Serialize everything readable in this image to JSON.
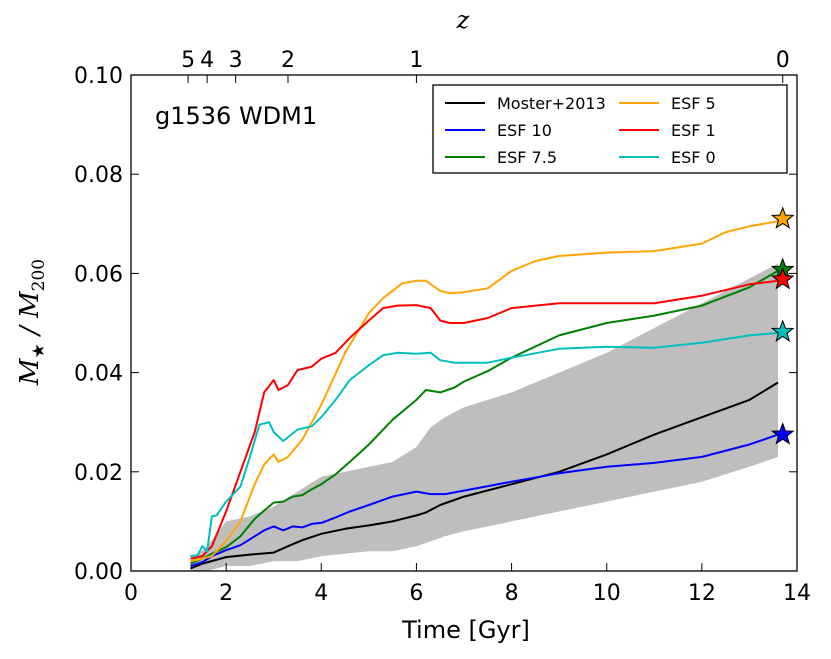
{
  "chart_data": {
    "type": "line",
    "panel_label": "g1536 WDM1",
    "xlabel": "Time [Gyr]",
    "ylabel": {
      "main": "M",
      "main_sub": "★",
      "sep": " / ",
      "den": "M",
      "den_sub": "200"
    },
    "top_axis_label": "z",
    "xlim": [
      0,
      14
    ],
    "ylim": [
      0.0,
      0.1
    ],
    "x_ticks": [
      0,
      2,
      4,
      6,
      8,
      10,
      12,
      14
    ],
    "x_tick_labels": [
      "0",
      "2",
      "4",
      "6",
      "8",
      "10",
      "12",
      "14"
    ],
    "y_ticks": [
      0.0,
      0.02,
      0.04,
      0.06,
      0.08,
      0.1
    ],
    "y_tick_labels": [
      "0.00",
      "0.02",
      "0.04",
      "0.06",
      "0.08",
      "0.10"
    ],
    "top_ticks": [
      {
        "label": "5",
        "time": 1.2
      },
      {
        "label": "4",
        "time": 1.6
      },
      {
        "label": "3",
        "time": 2.2
      },
      {
        "label": "2",
        "time": 3.3
      },
      {
        "label": "1",
        "time": 6.0
      },
      {
        "label": "0",
        "time": 13.7
      }
    ],
    "shaded_band": {
      "color": "#bebebe",
      "x": [
        1.25,
        1.6,
        2.0,
        2.5,
        3.0,
        3.5,
        4.0,
        5.0,
        5.5,
        6.0,
        6.3,
        6.6,
        7.0,
        8.0,
        9.0,
        10.0,
        11.0,
        12.0,
        13.0,
        13.6
      ],
      "upper": [
        0.002,
        0.005,
        0.01,
        0.011,
        0.013,
        0.016,
        0.019,
        0.021,
        0.022,
        0.025,
        0.029,
        0.031,
        0.033,
        0.036,
        0.04,
        0.044,
        0.049,
        0.054,
        0.059,
        0.062
      ],
      "lower": [
        0.0,
        0.0,
        0.001,
        0.001,
        0.002,
        0.002,
        0.003,
        0.004,
        0.004,
        0.005,
        0.006,
        0.007,
        0.008,
        0.01,
        0.012,
        0.014,
        0.016,
        0.018,
        0.021,
        0.023
      ]
    },
    "series": [
      {
        "name": "Moster+2013",
        "color": "#000000",
        "x": [
          1.25,
          1.5,
          2.0,
          2.5,
          3.0,
          3.3,
          3.6,
          4.0,
          4.5,
          5.0,
          5.5,
          6.0,
          6.2,
          6.5,
          7.0,
          8.0,
          9.0,
          10.0,
          11.0,
          12.0,
          13.0,
          13.6
        ],
        "y": [
          0.0005,
          0.0015,
          0.0028,
          0.0033,
          0.0037,
          0.005,
          0.0062,
          0.0075,
          0.0085,
          0.0092,
          0.01,
          0.0112,
          0.0118,
          0.0133,
          0.015,
          0.0175,
          0.02,
          0.0235,
          0.0275,
          0.031,
          0.0345,
          0.038
        ]
      },
      {
        "name": "ESF 10",
        "color": "#0000ff",
        "x": [
          1.25,
          1.5,
          1.7,
          2.0,
          2.3,
          2.6,
          2.8,
          3.0,
          3.2,
          3.4,
          3.6,
          3.8,
          4.0,
          4.3,
          4.6,
          5.0,
          5.5,
          6.0,
          6.3,
          6.6,
          7.0,
          8.0,
          9.0,
          10.0,
          11.0,
          12.0,
          13.0,
          13.6
        ],
        "y": [
          0.001,
          0.0018,
          0.003,
          0.0042,
          0.0052,
          0.007,
          0.0082,
          0.009,
          0.0082,
          0.009,
          0.0088,
          0.0095,
          0.0097,
          0.0108,
          0.012,
          0.0133,
          0.015,
          0.016,
          0.0155,
          0.0155,
          0.0162,
          0.018,
          0.0197,
          0.021,
          0.0218,
          0.023,
          0.0255,
          0.0275
        ]
      },
      {
        "name": "ESF 7.5",
        "color": "#008000",
        "x": [
          1.25,
          1.5,
          1.7,
          2.0,
          2.3,
          2.6,
          2.8,
          3.0,
          3.2,
          3.4,
          3.6,
          3.8,
          4.0,
          4.3,
          4.6,
          5.0,
          5.5,
          6.0,
          6.2,
          6.5,
          6.8,
          7.0,
          7.5,
          8.0,
          9.0,
          10.0,
          11.0,
          12.0,
          13.0,
          13.6
        ],
        "y": [
          0.0015,
          0.0025,
          0.0035,
          0.0048,
          0.007,
          0.0105,
          0.0122,
          0.0138,
          0.014,
          0.015,
          0.0153,
          0.0165,
          0.0175,
          0.0195,
          0.022,
          0.0255,
          0.0305,
          0.0345,
          0.0365,
          0.036,
          0.037,
          0.0382,
          0.0403,
          0.043,
          0.0475,
          0.05,
          0.0515,
          0.0535,
          0.0572,
          0.0605
        ]
      },
      {
        "name": "ESF 5",
        "color": "#ffa500",
        "x": [
          1.25,
          1.5,
          1.7,
          2.0,
          2.3,
          2.6,
          2.8,
          3.0,
          3.1,
          3.3,
          3.6,
          4.0,
          4.5,
          5.0,
          5.3,
          5.7,
          6.0,
          6.2,
          6.5,
          6.7,
          7.0,
          7.5,
          8.0,
          8.5,
          9.0,
          10.0,
          11.0,
          12.0,
          12.5,
          13.0,
          13.6
        ],
        "y": [
          0.002,
          0.0025,
          0.003,
          0.006,
          0.01,
          0.0175,
          0.0215,
          0.0235,
          0.022,
          0.023,
          0.0265,
          0.0335,
          0.044,
          0.052,
          0.055,
          0.058,
          0.0585,
          0.0585,
          0.0565,
          0.056,
          0.0562,
          0.057,
          0.0605,
          0.0625,
          0.0635,
          0.0642,
          0.0645,
          0.066,
          0.0683,
          0.0695,
          0.0705
        ]
      },
      {
        "name": "ESF 1",
        "color": "#ff0000",
        "x": [
          1.25,
          1.5,
          1.7,
          2.0,
          2.3,
          2.6,
          2.8,
          3.0,
          3.1,
          3.3,
          3.5,
          3.8,
          4.0,
          4.3,
          4.6,
          5.0,
          5.3,
          5.6,
          6.0,
          6.3,
          6.5,
          6.7,
          7.0,
          7.5,
          8.0,
          9.0,
          10.0,
          11.0,
          12.0,
          13.0,
          13.6
        ],
        "y": [
          0.0025,
          0.003,
          0.005,
          0.012,
          0.02,
          0.028,
          0.036,
          0.0385,
          0.0365,
          0.0375,
          0.0405,
          0.0412,
          0.0428,
          0.044,
          0.047,
          0.0505,
          0.053,
          0.0535,
          0.0536,
          0.053,
          0.0505,
          0.05,
          0.05,
          0.051,
          0.053,
          0.054,
          0.054,
          0.054,
          0.0555,
          0.0578,
          0.0585
        ]
      },
      {
        "name": "ESF 0",
        "color": "#00bfbf",
        "x": [
          1.25,
          1.4,
          1.5,
          1.6,
          1.7,
          1.8,
          2.0,
          2.3,
          2.5,
          2.7,
          2.9,
          3.0,
          3.2,
          3.5,
          3.8,
          4.0,
          4.3,
          4.6,
          5.0,
          5.3,
          5.6,
          6.0,
          6.3,
          6.5,
          6.8,
          7.0,
          7.5,
          8.0,
          9.0,
          10.0,
          11.0,
          12.0,
          13.0,
          13.6
        ],
        "y": [
          0.003,
          0.0032,
          0.005,
          0.004,
          0.011,
          0.0112,
          0.014,
          0.017,
          0.023,
          0.0295,
          0.03,
          0.028,
          0.0262,
          0.0285,
          0.0292,
          0.031,
          0.0345,
          0.0385,
          0.0415,
          0.0435,
          0.044,
          0.0438,
          0.044,
          0.0425,
          0.042,
          0.042,
          0.042,
          0.043,
          0.0448,
          0.0452,
          0.045,
          0.046,
          0.0475,
          0.048
        ]
      }
    ],
    "end_markers": [
      {
        "series": "ESF 5",
        "time": 13.7,
        "value": 0.071,
        "color": "#ffa500"
      },
      {
        "series": "ESF 7.5",
        "time": 13.7,
        "value": 0.0607,
        "color": "#008000"
      },
      {
        "series": "ESF 1",
        "time": 13.7,
        "value": 0.0588,
        "color": "#ff0000"
      },
      {
        "series": "ESF 0",
        "time": 13.7,
        "value": 0.0482,
        "color": "#00bfbf"
      },
      {
        "series": "ESF 10",
        "time": 13.7,
        "value": 0.0275,
        "color": "#0000ff"
      }
    ],
    "legend": {
      "placement": "top-right",
      "columns": [
        [
          "Moster+2013",
          "ESF 10",
          "ESF 7.5"
        ],
        [
          "ESF 5",
          "ESF 1",
          "ESF 0"
        ]
      ]
    }
  }
}
